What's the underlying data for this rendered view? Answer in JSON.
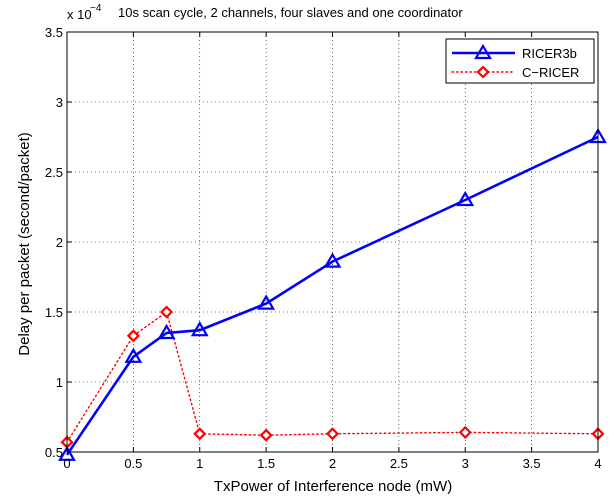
{
  "chart_data": {
    "type": "line",
    "title": "10s scan cycle, 2 channels, four slaves and one coordinator",
    "xlabel": "TxPower of Interference node (mW)",
    "ylabel": "Delay per packet (second/packet)",
    "y_multiplier": "x 10",
    "y_exponent": "−4",
    "xlim": [
      0,
      4
    ],
    "ylim": [
      0.5,
      3.5
    ],
    "x_tick_values": [
      0,
      0.5,
      1,
      1.5,
      2,
      2.5,
      3,
      3.5,
      4
    ],
    "x_tick_labels": [
      "0",
      "0.5",
      "1",
      "1.5",
      "2",
      "2.5",
      "3",
      "3.5",
      "4"
    ],
    "y_tick_values": [
      0.5,
      1,
      1.5,
      2,
      2.5,
      3,
      3.5
    ],
    "y_tick_labels": [
      "0.5",
      "1",
      "1.5",
      "2",
      "2.5",
      "3",
      "3.5"
    ],
    "grid": true,
    "legend_position": "top-right",
    "series": [
      {
        "name": "RICER3b",
        "color": "#0000ff",
        "line_style": "solid",
        "marker": "triangle",
        "x": [
          0,
          0.5,
          0.75,
          1,
          1.5,
          2,
          3,
          4
        ],
        "y": [
          0.48,
          1.18,
          1.35,
          1.37,
          1.56,
          1.86,
          2.3,
          2.75
        ]
      },
      {
        "name": "C−RICER",
        "color": "#ff0000",
        "line_style": "dotted",
        "marker": "diamond",
        "x": [
          0,
          0.5,
          0.75,
          1,
          1.5,
          2,
          3,
          4
        ],
        "y": [
          0.57,
          1.33,
          1.5,
          0.63,
          0.62,
          0.63,
          0.64,
          0.63
        ]
      }
    ]
  }
}
